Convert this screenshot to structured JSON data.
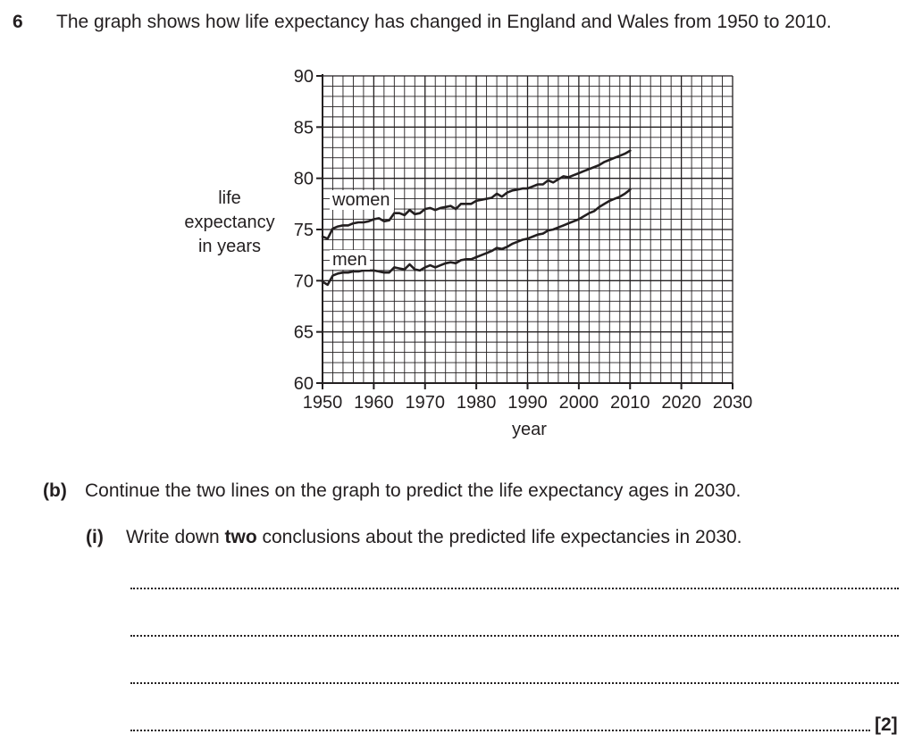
{
  "question": {
    "number": "6",
    "text": "The graph shows how life expectancy has changed in England and Wales from 1950 to 2010."
  },
  "chart_data": {
    "type": "line",
    "title": "",
    "xlabel": "year",
    "ylabel": "life expectancy in years",
    "ylabel_lines": [
      "life",
      "expectancy",
      "in years"
    ],
    "xlim": [
      1950,
      2030
    ],
    "ylim": [
      60,
      90
    ],
    "x_ticks": [
      1950,
      1960,
      1970,
      1980,
      1990,
      2000,
      2010,
      2020,
      2030
    ],
    "y_ticks": [
      60,
      65,
      70,
      75,
      80,
      85,
      90
    ],
    "grid": true,
    "minor_grid_step": {
      "x": 2,
      "y": 1
    },
    "series": [
      {
        "name": "women",
        "x": [
          1950,
          1951,
          1952,
          1953,
          1954,
          1955,
          1956,
          1957,
          1958,
          1959,
          1960,
          1961,
          1962,
          1963,
          1964,
          1965,
          1966,
          1967,
          1968,
          1969,
          1970,
          1971,
          1972,
          1973,
          1974,
          1975,
          1976,
          1977,
          1978,
          1979,
          1980,
          1981,
          1982,
          1983,
          1984,
          1985,
          1986,
          1987,
          1988,
          1989,
          1990,
          1991,
          1992,
          1993,
          1994,
          1995,
          1996,
          1997,
          1998,
          1999,
          2000,
          2001,
          2002,
          2003,
          2004,
          2005,
          2006,
          2007,
          2008,
          2009,
          2010
        ],
        "values": [
          74.3,
          74.1,
          75.1,
          75.3,
          75.4,
          75.4,
          75.6,
          75.7,
          75.7,
          75.8,
          76.0,
          76.1,
          75.8,
          75.9,
          76.6,
          76.6,
          76.4,
          76.9,
          76.5,
          76.6,
          77.0,
          77.1,
          76.9,
          77.1,
          77.2,
          77.3,
          77.0,
          77.5,
          77.5,
          77.5,
          77.8,
          77.9,
          78.0,
          78.1,
          78.5,
          78.2,
          78.6,
          78.8,
          78.9,
          79.0,
          79.0,
          79.2,
          79.4,
          79.4,
          79.8,
          79.6,
          79.9,
          80.2,
          80.1,
          80.3,
          80.5,
          80.7,
          80.9,
          81.1,
          81.3,
          81.6,
          81.8,
          82.0,
          82.2,
          82.4,
          82.7
        ]
      },
      {
        "name": "men",
        "x": [
          1950,
          1951,
          1952,
          1953,
          1954,
          1955,
          1956,
          1957,
          1958,
          1959,
          1960,
          1961,
          1962,
          1963,
          1964,
          1965,
          1966,
          1967,
          1968,
          1969,
          1970,
          1971,
          1972,
          1973,
          1974,
          1975,
          1976,
          1977,
          1978,
          1979,
          1980,
          1981,
          1982,
          1983,
          1984,
          1985,
          1986,
          1987,
          1988,
          1989,
          1990,
          1991,
          1992,
          1993,
          1994,
          1995,
          1996,
          1997,
          1998,
          1999,
          2000,
          2001,
          2002,
          2003,
          2004,
          2005,
          2006,
          2007,
          2008,
          2009,
          2010
        ],
        "values": [
          69.9,
          69.6,
          70.5,
          70.7,
          70.8,
          70.8,
          70.9,
          70.9,
          71.0,
          71.0,
          71.0,
          70.9,
          70.8,
          70.8,
          71.3,
          71.2,
          71.1,
          71.6,
          71.1,
          71.0,
          71.3,
          71.5,
          71.3,
          71.5,
          71.7,
          71.8,
          71.7,
          72.0,
          72.1,
          72.1,
          72.3,
          72.5,
          72.7,
          72.9,
          73.2,
          73.1,
          73.3,
          73.6,
          73.8,
          74.0,
          74.1,
          74.3,
          74.5,
          74.6,
          74.9,
          75.0,
          75.2,
          75.4,
          75.6,
          75.8,
          76.0,
          76.3,
          76.6,
          76.8,
          77.2,
          77.5,
          77.8,
          78.0,
          78.2,
          78.5,
          78.9
        ]
      }
    ]
  },
  "part_b": {
    "label": "(b)",
    "text": "Continue the two lines on the graph to predict the life expectancy ages in 2030."
  },
  "part_i": {
    "label": "(i)",
    "text_before": "Write down ",
    "text_bold": "two",
    "text_after": " conclusions about the predicted life expectancies in 2030."
  },
  "marks": "[2]"
}
